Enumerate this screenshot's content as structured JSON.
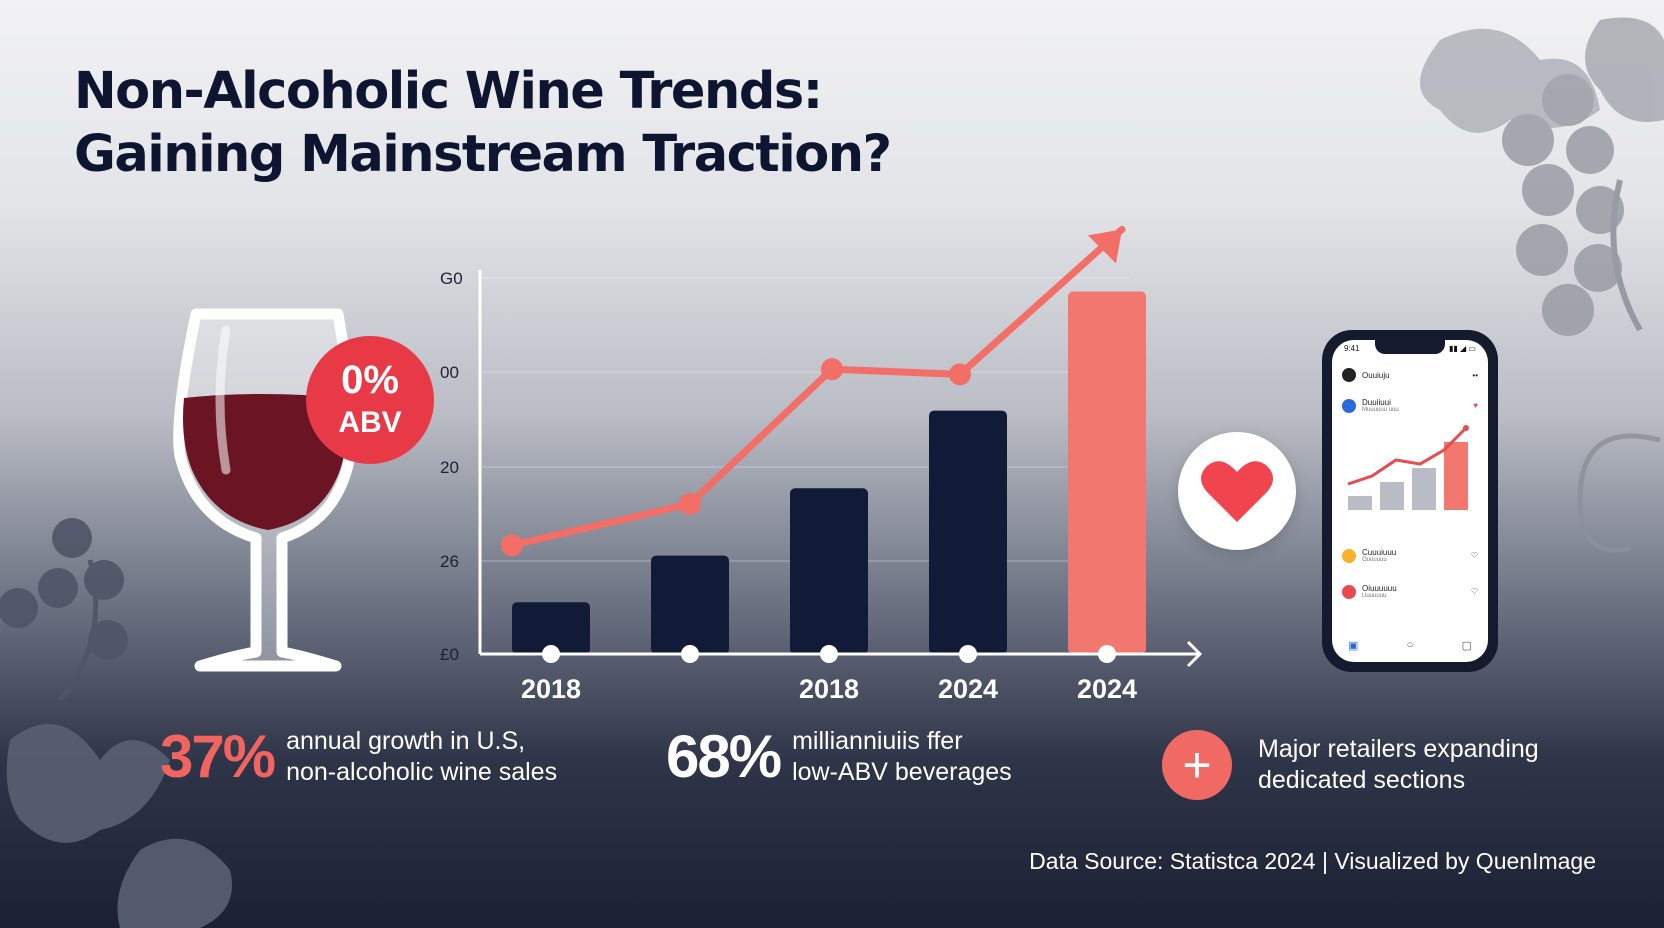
{
  "title": {
    "line1": "Non-Alcoholic Wine Trends:",
    "line2": "Gaining Mainstream Traction?"
  },
  "badge": {
    "line1": "0%",
    "line2": "ABV"
  },
  "chart_data": {
    "type": "bar",
    "categories": [
      "2018",
      "",
      "2018",
      "2024",
      "2024"
    ],
    "values": [
      10,
      19,
      32,
      47,
      70
    ],
    "line_series": [
      21,
      29,
      55,
      54,
      82
    ],
    "yticks": [
      "£0",
      "26",
      "20",
      "00",
      "G0"
    ],
    "ylim": [
      0,
      73
    ],
    "grid": true,
    "colors": {
      "bar": "#111a36",
      "highlight": "#f2776f",
      "line": "#f26e67"
    }
  },
  "stats": [
    {
      "value": "37%",
      "text": "annual growth in U.S,\nnon-alcoholic wine sales",
      "color": "#f2655e"
    },
    {
      "value": "68%",
      "text": "millianniuiis ffer\nlow-ABV beverages",
      "color": "#ffffff"
    },
    {
      "icon": "plus-icon",
      "text": "Major retailers expanding\ndedicated sections"
    }
  ],
  "phone": {
    "status_left": "9:41",
    "items": [
      {
        "label": "Ouuiuju",
        "color": "#222222"
      },
      {
        "label": "Duuiiuui",
        "sub": "Muuuuuu uuu",
        "color": "#2a6ad8"
      },
      {
        "label": "Cuuuiuuu",
        "sub": "Ouuuuuu",
        "color": "#f4b32a"
      },
      {
        "label": "Oiuuuuuu",
        "sub": "Uuuuuuu",
        "color": "#e84a50"
      }
    ]
  },
  "footer": "Data Source: Statistca 2024 | Visualized by QuenImage"
}
